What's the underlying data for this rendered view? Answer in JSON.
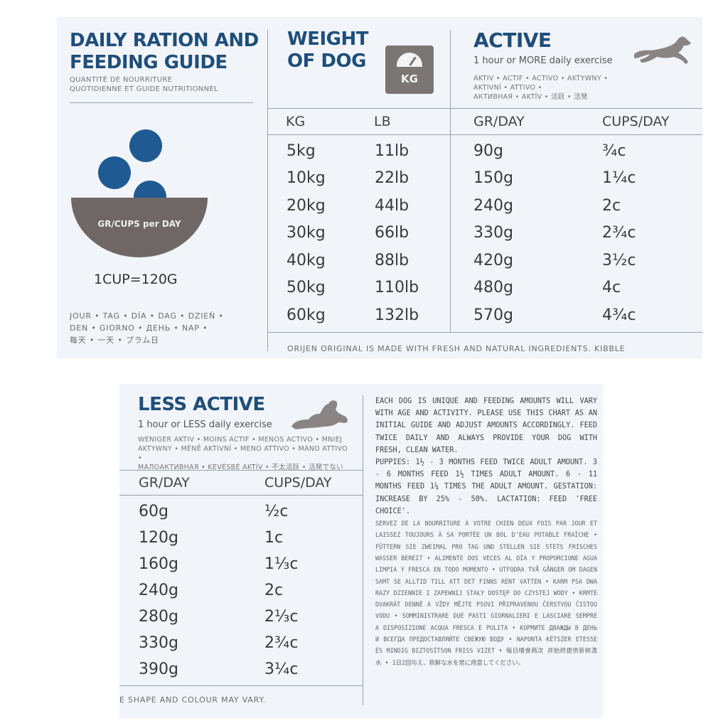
{
  "top": {
    "daily_title_1": "DAILY RATION AND",
    "daily_title_2": "FEEDING GUIDE",
    "daily_sub_1": "QUANTITÉ DE NOURRITURE",
    "daily_sub_2": "QUOTIDIENNE ET GUIDE NUTRITIONNEL",
    "bowl_label": "GR/CUPS per DAY",
    "cup_equivalence": "1CUP=120G",
    "day_words_1": "JOUR • TAG • DÍA • DAG • DZIEŃ •",
    "day_words_2": "DEN • GIORNO • ДЕНЬ • NAP •",
    "day_words_3": "每天 • 一天 • プラム日",
    "weight_title_1": "WEIGHT",
    "weight_title_2": "OF DOG",
    "kg_icon_label": "KG",
    "active_title": "ACTIVE",
    "active_sub": "1 hour or MORE daily exercise",
    "active_tiny_1": "AKTIV • ACTIF • ACTIVO • AKTYWNY • AKTIVNÍ • ATTIVO •",
    "active_tiny_2": "АКТИВНАЯ • AKTÍV • 活跃 • 活発",
    "headers": {
      "kg": "KG",
      "lb": "LB",
      "gr_day": "GR/DAY",
      "cups_day": "CUPS/DAY"
    },
    "rows": [
      {
        "kg": "5kg",
        "lb": "11lb",
        "gr": "90g",
        "cups": "¾c"
      },
      {
        "kg": "10kg",
        "lb": "22lb",
        "gr": "150g",
        "cups": "1¼c"
      },
      {
        "kg": "20kg",
        "lb": "44lb",
        "gr": "240g",
        "cups": "2c"
      },
      {
        "kg": "30kg",
        "lb": "66lb",
        "gr": "330g",
        "cups": "2¾c"
      },
      {
        "kg": "40kg",
        "lb": "88lb",
        "gr": "420g",
        "cups": "3½c"
      },
      {
        "kg": "50kg",
        "lb": "110lb",
        "gr": "480g",
        "cups": "4c"
      },
      {
        "kg": "60kg",
        "lb": "132lb",
        "gr": "570g",
        "cups": "4¾c"
      }
    ],
    "footer": "ORIJEN ORIGINAL IS MADE WITH FRESH AND NATURAL INGREDIENTS. KIBBLE"
  },
  "bottom": {
    "less_title": "LESS ACTIVE",
    "less_sub": "1 hour or LESS daily exercise",
    "less_tiny_1": "WENIGER AKTIV • MOINS ACTIF • MENOS ACTIVO • MNIEJ",
    "less_tiny_2": "AKTYWNY • MÉNĚ AKTIVNÍ • MENO ATTIVO • MANO ATTIVO •",
    "less_tiny_3": "МАЛОАКТИВНАЯ • KEVÉSBÉ AKTÍV • 不太活跃 • 活発でない",
    "headers": {
      "gr_day": "GR/DAY",
      "cups_day": "CUPS/DAY"
    },
    "rows": [
      {
        "gr": "60g",
        "cups": "½c"
      },
      {
        "gr": "120g",
        "cups": "1c"
      },
      {
        "gr": "160g",
        "cups": "1⅓c"
      },
      {
        "gr": "240g",
        "cups": "2c"
      },
      {
        "gr": "280g",
        "cups": "2⅓c"
      },
      {
        "gr": "330g",
        "cups": "2¾c"
      },
      {
        "gr": "390g",
        "cups": "3¼c"
      }
    ],
    "footer": "E SHAPE AND COLOUR MAY VARY.",
    "info_main": "EACH DOG IS UNIQUE AND FEEDING AMOUNTS WILL VARY WITH AGE AND ACTIVITY. PLEASE USE THIS CHART AS AN INITIAL GUIDE AND ADJUST AMOUNTS ACCORDINGLY. FEED TWICE DAILY AND ALWAYS PROVIDE YOUR DOG WITH FRESH, CLEAN WATER.",
    "info_puppies": "PUPPIES: 1½ - 3 MONTHS FEED TWICE ADULT AMOUNT. 3 - 6 MONTHS FEED 1½ TIMES ADULT AMOUNT. 6 - 11 MONTHS FEED 1¼ TIMES THE ADULT AMOUNT. GESTATION: INCREASE BY 25% - 50%. LACTATION: FEED 'FREE CHOICE'.",
    "info_fine": "SERVEZ DE LA NOURRITURE À VOTRE CHIEN DEUX FOIS PAR JOUR ET LAISSEZ TOUJOURS À SA PORTÉE UN BOL D'EAU POTABLE FRAÎCHE • FÜTTERN SIE ZWEIMAL PRO TAG UND STELLEN SIE STETS FRISCHES WASSER BEREIT • ALIMENTE DOS VECES AL DÍA Y PROPORCIONE AGUA LIMPIA Y FRESCA EN TODO MOMENTO • UTFODRA TVÅ GÅNGER OM DAGEN SAMT SE ALLTID TILL ATT DET FINNS RENT VATTEN • KARM PSA DWA RAZY DZIENNIE I ZAPEWNIJ STAŁY DOSTĘP DO CZYSTEJ WODY • KRMTE DVAKRÁT DENNĚ A VŽDY MĚJTE PSOVI PŘIPRAVENOU ČERSTVOU ČISTOU VODU • SOMMINISTRARE DUE PASTI GIORNALIERI E LASCIARE SEMPRE A DISPOSIZIONE ACQUA FRESCA E PULITA • КОРМИТЕ ДВАЖДЫ В ДЕНЬ И ВСЕГДА ПРЕДОСТАВЛЯЙТЕ СВЕЖУЮ ВОДУ • NAPONTA KÉTSZER ETESSE ÉS MINDIG BIZTOSÍTSON FRISS VIZET • 每日喂食两次 并始终提供新鲜清水 • 1日2回与え、新鮮な水を常に用意してください。"
  }
}
